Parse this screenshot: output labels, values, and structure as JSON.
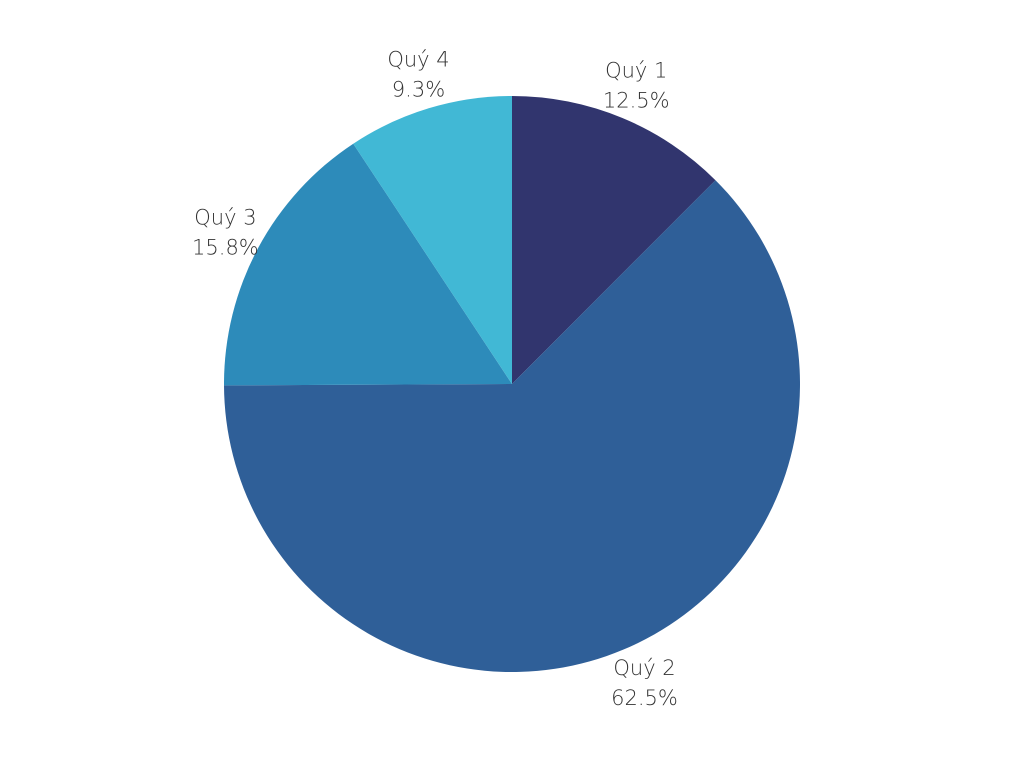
{
  "chart_data": {
    "type": "pie",
    "title": "",
    "categories": [
      "Quý 1",
      "Quý 2",
      "Quý 3",
      "Quý 4"
    ],
    "values": [
      12.5,
      62.5,
      15.8,
      9.3
    ],
    "value_labels": [
      "12.5%",
      "62.5%",
      "15.8%",
      "9.3%"
    ],
    "colors": [
      "#31356E",
      "#2F5F98",
      "#2D8BBA",
      "#41B8D5"
    ],
    "start_angle": "top (12 o'clock)",
    "direction": "clockwise",
    "legend": "none",
    "labels_placement": "outside"
  }
}
